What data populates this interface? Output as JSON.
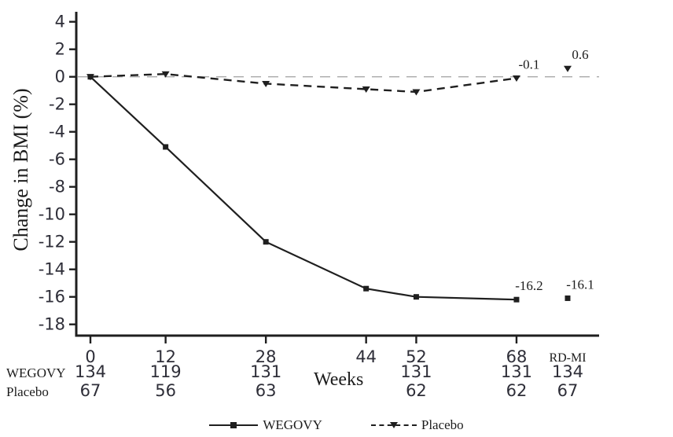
{
  "figure": {
    "y_axis_title": "Change in BMI (%)",
    "x_axis_title": "Weeks"
  },
  "colors": {
    "line": "#1f1f1f",
    "text": "#1c1c1c",
    "tick_text": "#2e2e38",
    "zero_line": "#a9a9a9",
    "background": "#ffffff"
  },
  "counts_table": {
    "rows": [
      {
        "label": "WEGOVY",
        "values": [
          "134",
          "119",
          "131",
          "",
          "131",
          "131",
          "134"
        ]
      },
      {
        "label": "Placebo",
        "values": [
          "67",
          "56",
          "63",
          "",
          "62",
          "62",
          "67"
        ]
      }
    ]
  },
  "legend": [
    {
      "label": "WEGOVY",
      "line": "solid",
      "marker": "square"
    },
    {
      "label": "Placebo",
      "line": "dashed",
      "marker": "triangle-down"
    }
  ],
  "chart_data": {
    "type": "line",
    "title": "",
    "xlabel": "Weeks",
    "ylabel": "Change in BMI (%)",
    "x_ticks_weeks": [
      0,
      12,
      28,
      44,
      52,
      68
    ],
    "extra_category": "RD-MI",
    "ylim": [
      -18,
      4
    ],
    "y_tick_step": 2,
    "grid": false,
    "zero_reference_line": true,
    "legend_position": "bottom",
    "series": [
      {
        "name": "WEGOVY",
        "line": "solid",
        "marker": "square",
        "x": [
          0,
          12,
          28,
          44,
          52,
          68
        ],
        "y": [
          0,
          -5.1,
          -12.0,
          -15.4,
          -16.0,
          -16.2
        ],
        "rdmi_y": -16.1
      },
      {
        "name": "Placebo",
        "line": "dashed",
        "marker": "triangle-down",
        "x": [
          0,
          12,
          28,
          44,
          52,
          68
        ],
        "y": [
          0,
          0.2,
          -0.5,
          -0.9,
          -1.1,
          -0.1
        ],
        "rdmi_y": 0.6
      }
    ],
    "annotations": [
      {
        "text": "-0.1",
        "series": "Placebo",
        "at": "68"
      },
      {
        "text": "0.6",
        "series": "Placebo",
        "at": "RD-MI"
      },
      {
        "text": "-16.2",
        "series": "WEGOVY",
        "at": "68"
      },
      {
        "text": "-16.1",
        "series": "WEGOVY",
        "at": "RD-MI"
      }
    ]
  }
}
